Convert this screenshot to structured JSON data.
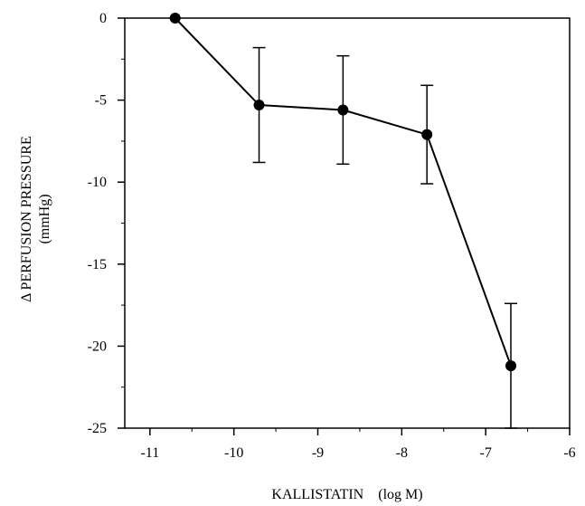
{
  "chart_data": {
    "type": "line",
    "xlabel": "KALLISTATIN    (log M)",
    "ylabel_line1": "Δ PERFUSION PRESSURE",
    "ylabel_line2": "(mmHg)",
    "xlim": [
      -11.3,
      -6
    ],
    "ylim": [
      -25,
      0
    ],
    "x_ticks": [
      -11,
      -10,
      -9,
      -8,
      -7,
      -6
    ],
    "y_ticks": [
      0,
      -5,
      -10,
      -15,
      -20,
      -25
    ],
    "grid": false,
    "series": [
      {
        "x": [
          -10.7,
          -9.7,
          -8.7,
          -7.7,
          -6.7
        ],
        "y": [
          0,
          -5.3,
          -5.6,
          -7.1,
          -21.2
        ],
        "error": [
          0,
          3.5,
          3.3,
          3.0,
          3.8
        ]
      }
    ]
  }
}
